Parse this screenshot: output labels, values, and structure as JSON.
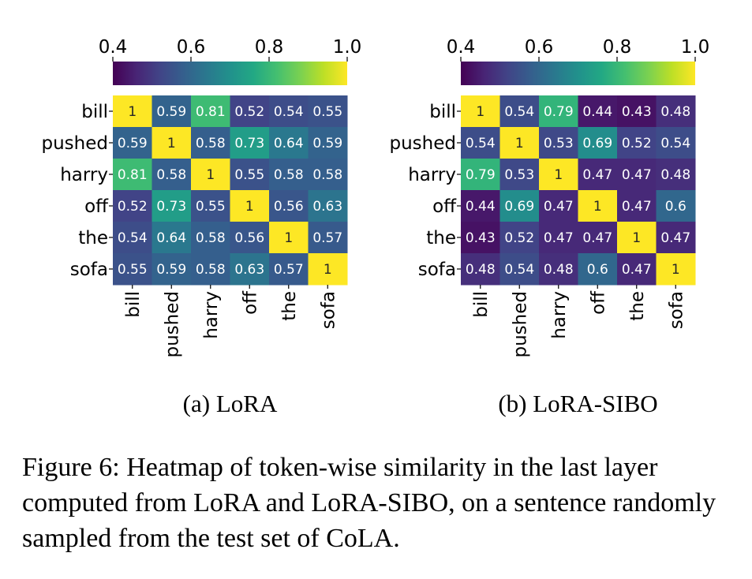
{
  "chart_data": [
    {
      "type": "heatmap",
      "subcaption": "(a) LoRA",
      "tokens": [
        "bill",
        "pushed",
        "harry",
        "off",
        "the",
        "sofa"
      ],
      "colorbar": {
        "min": 0.4,
        "max": 1.0,
        "ticks": [
          "0.4",
          "0.6",
          "0.8",
          "1.0"
        ],
        "colormap": "viridis",
        "placement": "top"
      },
      "matrix": [
        [
          1,
          0.59,
          0.81,
          0.52,
          0.54,
          0.55
        ],
        [
          0.59,
          1,
          0.58,
          0.73,
          0.64,
          0.59
        ],
        [
          0.81,
          0.58,
          1,
          0.55,
          0.58,
          0.58
        ],
        [
          0.52,
          0.73,
          0.55,
          1,
          0.56,
          0.63
        ],
        [
          0.54,
          0.64,
          0.58,
          0.56,
          1,
          0.57
        ],
        [
          0.55,
          0.59,
          0.58,
          0.63,
          0.57,
          1
        ]
      ]
    },
    {
      "type": "heatmap",
      "subcaption": "(b) LoRA-SIBO",
      "tokens": [
        "bill",
        "pushed",
        "harry",
        "off",
        "the",
        "sofa"
      ],
      "colorbar": {
        "min": 0.4,
        "max": 1.0,
        "ticks": [
          "0.4",
          "0.6",
          "0.8",
          "1.0"
        ],
        "colormap": "viridis",
        "placement": "top"
      },
      "matrix": [
        [
          1,
          0.54,
          0.79,
          0.44,
          0.43,
          0.48
        ],
        [
          0.54,
          1,
          0.53,
          0.69,
          0.52,
          0.54
        ],
        [
          0.79,
          0.53,
          1,
          0.47,
          0.47,
          0.48
        ],
        [
          0.44,
          0.69,
          0.47,
          1,
          0.47,
          0.6
        ],
        [
          0.43,
          0.52,
          0.47,
          0.47,
          1,
          0.47
        ],
        [
          0.48,
          0.54,
          0.48,
          0.6,
          0.47,
          1
        ]
      ]
    }
  ],
  "caption": "Figure 6: Heatmap of token-wise similarity in the last layer computed from LoRA and LoRA-SIBO, on a sentence randomly sampled from the test set of CoLA."
}
